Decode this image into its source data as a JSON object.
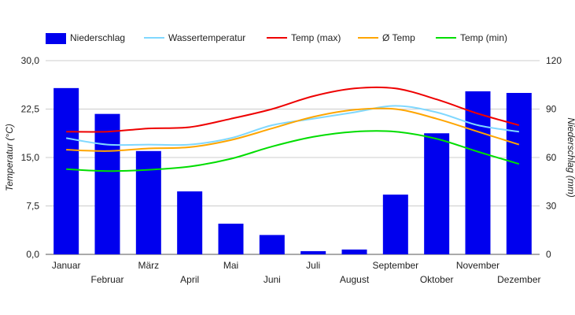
{
  "chart_data": {
    "type": "bar+line",
    "categories": [
      "Januar",
      "Februar",
      "März",
      "April",
      "Mai",
      "Juni",
      "Juli",
      "August",
      "September",
      "Oktober",
      "November",
      "Dezember"
    ],
    "left_axis": {
      "label": "Temperatur (°C)",
      "range": [
        0,
        30
      ],
      "ticks": [
        "0,0",
        "7,5",
        "15,0",
        "22,5",
        "30,0"
      ]
    },
    "right_axis": {
      "label": "Niederschlag (mm)",
      "range": [
        0,
        120
      ],
      "ticks": [
        "0",
        "30",
        "60",
        "90",
        "120"
      ]
    },
    "bars": {
      "name": "Niederschlag",
      "color": "#0000ee",
      "axis": "right",
      "values": [
        103,
        87,
        64,
        39,
        19,
        12,
        2,
        3,
        37,
        75,
        101,
        100
      ]
    },
    "series": [
      {
        "name": "Wassertemperatur",
        "color": "#80d8ff",
        "axis": "left",
        "values": [
          18.0,
          17.0,
          17.0,
          17.0,
          18.0,
          20.0,
          21.0,
          22.0,
          23.0,
          22.0,
          20.0,
          19.0
        ]
      },
      {
        "name": "Temp (max)",
        "color": "#ee0000",
        "axis": "left",
        "values": [
          19.0,
          19.0,
          19.5,
          19.7,
          21.0,
          22.5,
          24.5,
          25.7,
          25.7,
          24.0,
          21.8,
          20.0
        ]
      },
      {
        "name": "Ø Temp",
        "color": "#ffa500",
        "axis": "left",
        "values": [
          16.2,
          16.0,
          16.4,
          16.6,
          17.7,
          19.5,
          21.3,
          22.4,
          22.5,
          21.0,
          19.0,
          17.0
        ]
      },
      {
        "name": "Temp (min)",
        "color": "#00dd00",
        "axis": "left",
        "values": [
          13.2,
          12.9,
          13.1,
          13.6,
          14.8,
          16.7,
          18.2,
          19.0,
          19.0,
          17.9,
          15.9,
          14.0
        ]
      }
    ],
    "legend_position": "top-left",
    "grid": true
  }
}
